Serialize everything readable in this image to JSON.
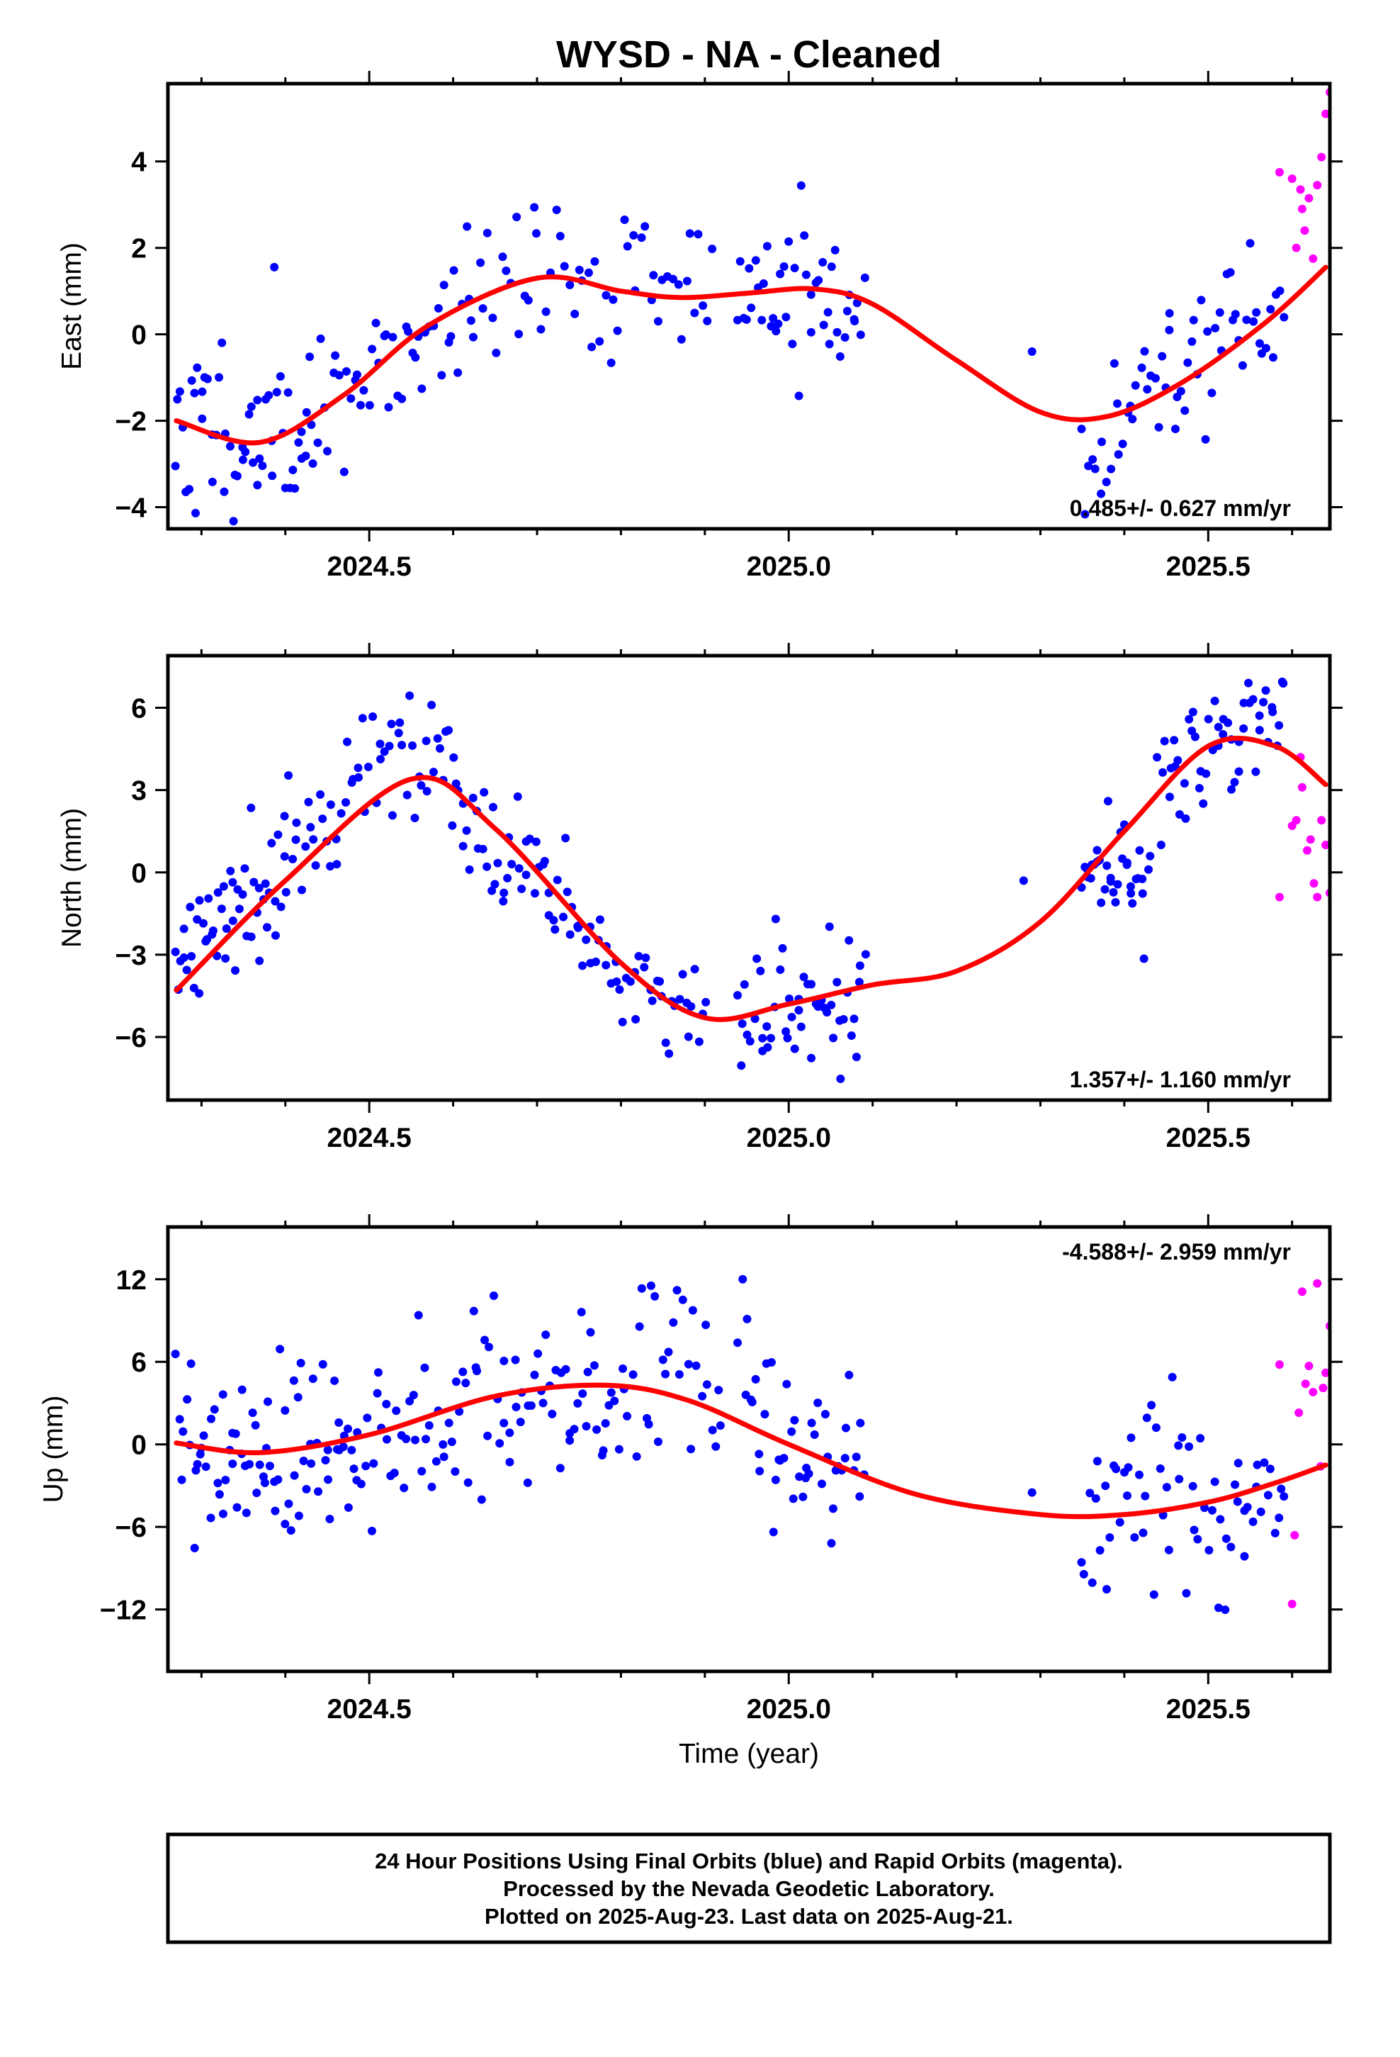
{
  "title": "WYSD  - NA - Cleaned",
  "colors": {
    "final": "#0000ff",
    "rapid": "#ff00ff",
    "fit": "#ff0000",
    "frame": "#000000"
  },
  "chart_data": [
    {
      "type": "scatter",
      "ylabel": "East (mm)",
      "xlabel": "",
      "xlim": [
        2024.26,
        2025.645
      ],
      "ylim": [
        -4.5,
        5.8
      ],
      "yticks": [
        -4,
        -2,
        0,
        2,
        4
      ],
      "yticklabels": [
        "−4",
        "−2",
        "0",
        "2",
        "4"
      ],
      "xticklabels": [
        "2024.5",
        "2025.0",
        "2025.5"
      ],
      "rate": "0.485+/- 0.627 mm/yr",
      "rate_position": "bottom-right",
      "fit": {
        "name": "fit",
        "x": [
          2024.27,
          2024.37,
          2024.47,
          2024.57,
          2024.7,
          2024.8,
          2024.87,
          2024.95,
          2025.03,
          2025.1,
          2025.2,
          2025.3,
          2025.38,
          2025.47,
          2025.57,
          2025.64
        ],
        "y": [
          -2.0,
          -2.5,
          -1.4,
          0.2,
          1.3,
          1.0,
          0.85,
          0.95,
          1.05,
          0.7,
          -0.6,
          -1.8,
          -1.9,
          -1.1,
          0.3,
          1.55
        ]
      },
      "series": [
        {
          "name": "Final Orbits",
          "color": "blue",
          "segments": [
            {
              "x0": 2024.27,
              "x1": 2024.43,
              "mean": [
                -2.0,
                -2.5,
                -2.2
              ],
              "noise": 1.1,
              "n": 55,
              "seed": 11
            },
            {
              "x0": 2024.43,
              "x1": 2024.62,
              "mean": [
                -1.9,
                -0.6,
                0.6
              ],
              "noise": 1.0,
              "n": 45,
              "seed": 12
            },
            {
              "x0": 2024.62,
              "x1": 2024.91,
              "mean": [
                1.0,
                1.3,
                0.95
              ],
              "noise": 0.8,
              "n": 55,
              "seed": 13
            },
            {
              "x0": 2024.94,
              "x1": 2025.09,
              "mean": [
                1.1,
                1.05,
                0.75
              ],
              "noise": 0.85,
              "n": 45,
              "seed": 14
            },
            {
              "x0": 2025.29,
              "x1": 2025.29,
              "mean": [
                -0.4,
                -0.4,
                -0.4
              ],
              "noise": 0.0,
              "n": 1,
              "seed": 15
            },
            {
              "x0": 2025.35,
              "x1": 2025.59,
              "mean": [
                -2.3,
                -0.9,
                0.7
              ],
              "noise": 0.9,
              "n": 60,
              "seed": 16
            }
          ]
        },
        {
          "name": "Rapid Orbits",
          "color": "magenta",
          "points": [
            [
              2025.585,
              3.75
            ],
            [
              2025.6,
              3.6
            ],
            [
              2025.605,
              2.0
            ],
            [
              2025.61,
              3.35
            ],
            [
              2025.612,
              2.9
            ],
            [
              2025.615,
              2.4
            ],
            [
              2025.62,
              3.15
            ],
            [
              2025.625,
              1.75
            ],
            [
              2025.63,
              3.45
            ],
            [
              2025.635,
              4.1
            ],
            [
              2025.64,
              5.1
            ],
            [
              2025.645,
              5.6
            ]
          ]
        }
      ]
    },
    {
      "type": "scatter",
      "ylabel": "North (mm)",
      "xlabel": "",
      "xlim": [
        2024.26,
        2025.645
      ],
      "ylim": [
        -8.3,
        7.9
      ],
      "yticks": [
        -6,
        -3,
        0,
        3,
        6
      ],
      "yticklabels": [
        "−6",
        "−3",
        "0",
        "3",
        "6"
      ],
      "xticklabels": [
        "2024.5",
        "2025.0",
        "2025.5"
      ],
      "rate": "1.357+/- 1.160 mm/yr",
      "rate_position": "bottom-right",
      "fit": {
        "name": "fit",
        "x": [
          2024.27,
          2024.4,
          2024.55,
          2024.65,
          2024.8,
          2024.9,
          2025.0,
          2025.1,
          2025.2,
          2025.3,
          2025.4,
          2025.5,
          2025.58,
          2025.64
        ],
        "y": [
          -4.3,
          -0.3,
          3.4,
          1.6,
          -3.3,
          -5.3,
          -4.8,
          -4.1,
          -3.6,
          -1.8,
          1.5,
          4.6,
          4.6,
          3.2
        ]
      },
      "series": [
        {
          "name": "Final Orbits",
          "color": "blue",
          "segments": [
            {
              "x0": 2024.27,
              "x1": 2024.4,
              "mean": [
                -3.6,
                -1.8,
                0.0
              ],
              "noise": 1.2,
              "n": 50,
              "seed": 21
            },
            {
              "x0": 2024.4,
              "x1": 2024.6,
              "mean": [
                0.5,
                4.0,
                4.0
              ],
              "noise": 1.3,
              "n": 55,
              "seed": 22
            },
            {
              "x0": 2024.6,
              "x1": 2024.75,
              "mean": [
                3.0,
                0.5,
                -1.5
              ],
              "noise": 1.0,
              "n": 45,
              "seed": 23
            },
            {
              "x0": 2024.75,
              "x1": 2024.9,
              "mean": [
                -2.0,
                -4.5,
                -5.6
              ],
              "noise": 1.0,
              "n": 40,
              "seed": 24
            },
            {
              "x0": 2024.94,
              "x1": 2025.09,
              "mean": [
                -5.8,
                -5.0,
                -4.2
              ],
              "noise": 1.3,
              "n": 50,
              "seed": 25
            },
            {
              "x0": 2025.28,
              "x1": 2025.28,
              "mean": [
                -0.3,
                -0.3,
                -0.3
              ],
              "noise": 0.0,
              "n": 1,
              "seed": 26
            },
            {
              "x0": 2025.35,
              "x1": 2025.43,
              "mean": [
                -0.3,
                0.3,
                0.2
              ],
              "noise": 0.9,
              "n": 35,
              "seed": 27
            },
            {
              "x0": 2025.44,
              "x1": 2025.59,
              "mean": [
                3.5,
                5.0,
                5.6
              ],
              "noise": 1.1,
              "n": 50,
              "seed": 28
            }
          ]
        },
        {
          "name": "Rapid Orbits",
          "color": "magenta",
          "points": [
            [
              2025.585,
              -0.9
            ],
            [
              2025.6,
              1.7
            ],
            [
              2025.605,
              1.9
            ],
            [
              2025.61,
              4.2
            ],
            [
              2025.612,
              3.1
            ],
            [
              2025.618,
              0.8
            ],
            [
              2025.622,
              1.2
            ],
            [
              2025.626,
              -0.4
            ],
            [
              2025.63,
              -0.9
            ],
            [
              2025.635,
              1.9
            ],
            [
              2025.64,
              1.0
            ],
            [
              2025.645,
              -0.75
            ]
          ]
        }
      ]
    },
    {
      "type": "scatter",
      "ylabel": "Up (mm)",
      "xlabel": "Time (year)",
      "xlim": [
        2024.26,
        2025.645
      ],
      "ylim": [
        -16.5,
        15.8
      ],
      "yticks": [
        -12,
        -6,
        0,
        6,
        12
      ],
      "yticklabels": [
        "−12",
        "−6",
        "0",
        "6",
        "12"
      ],
      "xticklabels": [
        "2024.5",
        "2025.0",
        "2025.5"
      ],
      "rate": "-4.588+/- 2.959 mm/yr",
      "rate_position": "top-right",
      "fit": {
        "name": "fit",
        "x": [
          2024.27,
          2024.37,
          2024.5,
          2024.65,
          2024.78,
          2024.88,
          2025.0,
          2025.15,
          2025.3,
          2025.4,
          2025.5,
          2025.58,
          2025.64
        ],
        "y": [
          0.1,
          -0.6,
          0.7,
          3.5,
          4.3,
          3.2,
          0.0,
          -3.6,
          -5.1,
          -5.1,
          -4.2,
          -2.8,
          -1.5
        ]
      },
      "series": [
        {
          "name": "Final Orbits",
          "color": "blue",
          "segments": [
            {
              "x0": 2024.27,
              "x1": 2024.48,
              "mean": [
                -1.0,
                -0.8,
                0.2
              ],
              "noise": 3.6,
              "n": 75,
              "seed": 31
            },
            {
              "x0": 2024.48,
              "x1": 2024.78,
              "mean": [
                0.5,
                2.5,
                4.0
              ],
              "noise": 4.0,
              "n": 85,
              "seed": 32
            },
            {
              "x0": 2024.78,
              "x1": 2024.92,
              "mean": [
                4.0,
                6.0,
                3.0
              ],
              "noise": 3.2,
              "n": 35,
              "seed": 33
            },
            {
              "x0": 2024.94,
              "x1": 2025.09,
              "mean": [
                3.0,
                0.0,
                -2.0
              ],
              "noise": 3.8,
              "n": 45,
              "seed": 34
            },
            {
              "x0": 2025.29,
              "x1": 2025.29,
              "mean": [
                -3.5,
                -3.5,
                -3.5
              ],
              "noise": 0.0,
              "n": 1,
              "seed": 35
            },
            {
              "x0": 2025.35,
              "x1": 2025.59,
              "mean": [
                -5.0,
                -4.0,
                -3.5
              ],
              "noise": 3.3,
              "n": 65,
              "seed": 36
            }
          ]
        },
        {
          "name": "Rapid Orbits",
          "color": "magenta",
          "points": [
            [
              2025.585,
              5.8
            ],
            [
              2025.6,
              -11.6
            ],
            [
              2025.603,
              -6.6
            ],
            [
              2025.608,
              2.3
            ],
            [
              2025.612,
              11.1
            ],
            [
              2025.616,
              4.4
            ],
            [
              2025.62,
              5.7
            ],
            [
              2025.625,
              3.8
            ],
            [
              2025.63,
              11.7
            ],
            [
              2025.634,
              -1.6
            ],
            [
              2025.637,
              4.1
            ],
            [
              2025.64,
              5.2
            ],
            [
              2025.645,
              8.6
            ]
          ]
        }
      ]
    }
  ],
  "footer": {
    "line1": "24 Hour Positions Using Final Orbits (blue) and Rapid Orbits (magenta).",
    "line2": "Processed by the Nevada Geodetic Laboratory.",
    "line3": "Plotted on 2025-Aug-23. Last data on 2025-Aug-21."
  }
}
